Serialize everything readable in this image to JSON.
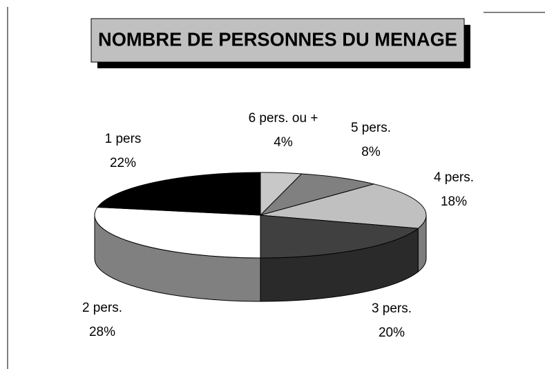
{
  "chart_data": {
    "type": "pie3d",
    "title": "NOMBRE DE PERSONNES DU MENAGE",
    "categories": [
      "6 pers. ou +",
      "5 pers.",
      "4 pers.",
      "3 pers.",
      "2 pers.",
      "1 pers"
    ],
    "values": [
      4,
      8,
      18,
      20,
      28,
      22
    ],
    "value_labels": [
      "4%",
      "8%",
      "18%",
      "20%",
      "28%",
      "22%"
    ],
    "colors": [
      "#c8c8c8",
      "#808080",
      "#c0c0c0",
      "#404040",
      "#ffffff",
      "#000000"
    ]
  }
}
